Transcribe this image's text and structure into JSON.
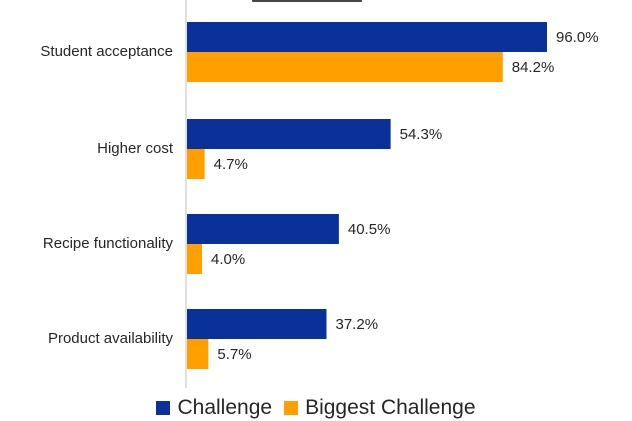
{
  "colors": {
    "challenge": "#0a3199",
    "biggest": "#ff9f00"
  },
  "legend": {
    "challenge_label": "Challenge",
    "biggest_label": "Biggest Challenge"
  },
  "chart_data": {
    "type": "bar",
    "orientation": "horizontal",
    "categories": [
      "Student acceptance",
      "Higher cost",
      "Recipe functionality",
      "Product availability"
    ],
    "series": [
      {
        "name": "Challenge",
        "values": [
          96.0,
          54.3,
          40.5,
          37.2
        ],
        "labels": [
          "96.0%",
          "54.3%",
          "40.5%",
          "37.2%"
        ]
      },
      {
        "name": "Biggest Challenge",
        "values": [
          84.2,
          4.7,
          4.0,
          5.7
        ],
        "labels": [
          "84.2%",
          "4.7%",
          "4.0%",
          "5.7%"
        ]
      }
    ],
    "xlim": [
      0,
      100
    ],
    "grid": false,
    "legend_position": "bottom"
  }
}
